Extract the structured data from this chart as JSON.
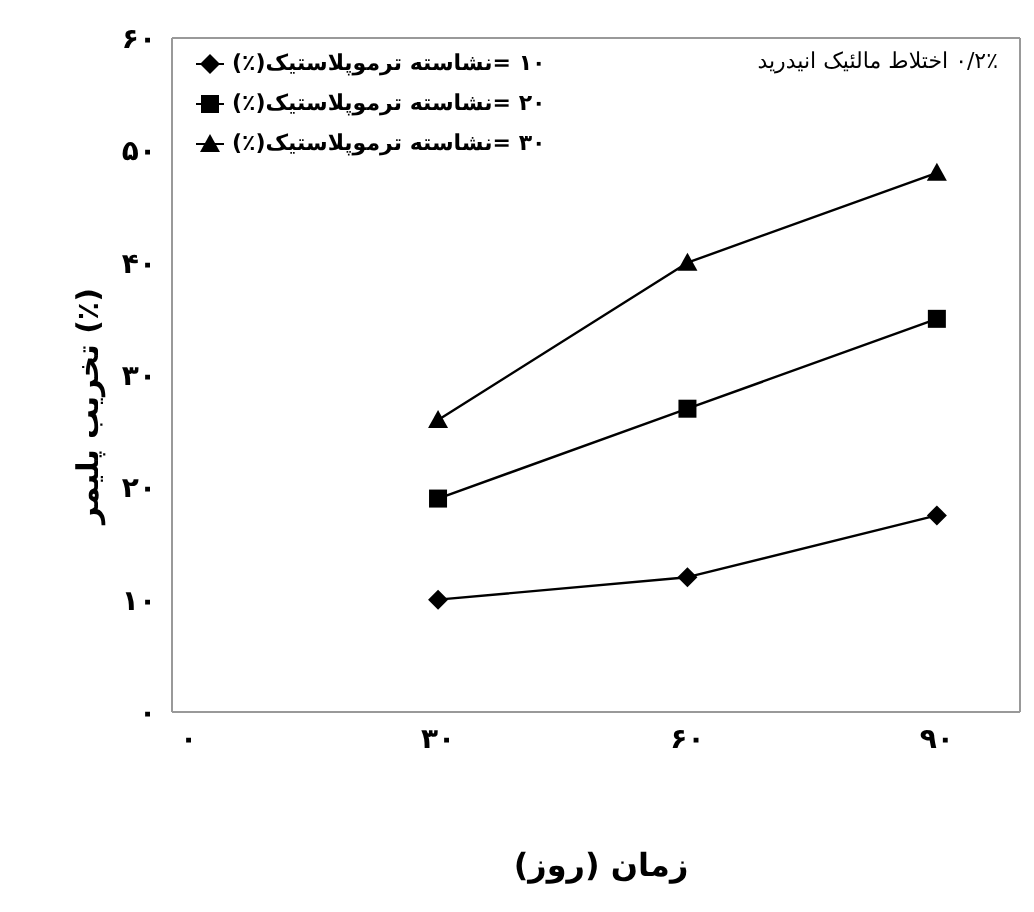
{
  "chart_data": {
    "type": "line",
    "xlabel": "زمان (روز)",
    "ylabel": "تخریب پلیمر (٪)",
    "annotations": [
      "۰/۲٪ اختلاط مالئیک انیدرید"
    ],
    "x": [
      30,
      60,
      90
    ],
    "series": [
      {
        "name": "۱۰ =نشاسته ترموپلاستیک(٪)",
        "color": "#000000",
        "marker": "diamond",
        "values": [
          10,
          12,
          17.5
        ]
      },
      {
        "name": "۲۰ =نشاسته ترموپلاستیک(٪)",
        "color": "#000000",
        "marker": "square",
        "values": [
          19,
          27,
          35
        ]
      },
      {
        "name": "۳۰ =نشاسته ترموپلاستیک(٪)",
        "color": "#000000",
        "marker": "triangle",
        "values": [
          26,
          40,
          48
        ]
      }
    ],
    "xlim": [
      -2,
      100
    ],
    "ylim": [
      0,
      60
    ],
    "xticks": [
      {
        "value": 0,
        "label": "۰"
      },
      {
        "value": 30,
        "label": "۳۰"
      },
      {
        "value": 60,
        "label": "۶۰"
      },
      {
        "value": 90,
        "label": "۹۰"
      }
    ],
    "yticks": [
      {
        "value": 0,
        "label": "۰"
      },
      {
        "value": 10,
        "label": "۱۰"
      },
      {
        "value": 20,
        "label": "۲۰"
      },
      {
        "value": 30,
        "label": "۳۰"
      },
      {
        "value": 40,
        "label": "۴۰"
      },
      {
        "value": 50,
        "label": "۵۰"
      },
      {
        "value": 60,
        "label": "۶۰"
      }
    ],
    "grid": false,
    "legend": "top left",
    "line_style": "solid"
  }
}
